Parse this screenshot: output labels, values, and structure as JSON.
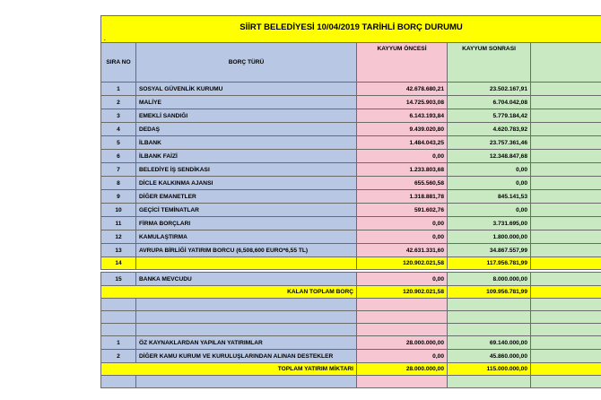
{
  "title": "SİİRT BELEDİYESİ 10/04/2019 TARİHLİ BORÇ DURUMU",
  "title_mark": ".",
  "headers": {
    "no": "SIRA NO",
    "type": "BORÇ TÜRÜ",
    "before": "KAYYUM ÖNCESİ",
    "after": "KAYYUM SONRASI"
  },
  "rows": [
    {
      "no": "1",
      "type": "SOSYAL GÜVENLİK KURUMU",
      "before": "42.678.680,21",
      "after": "23.502.167,91"
    },
    {
      "no": "2",
      "type": "MALİYE",
      "before": "14.725.903,08",
      "after": "6.704.042,08"
    },
    {
      "no": "3",
      "type": "EMEKLİ SANDIĞI",
      "before": "6.143.193,84",
      "after": "5.779.184,42"
    },
    {
      "no": "4",
      "type": "DEDAŞ",
      "before": "9.439.020,80",
      "after": "4.620.783,92"
    },
    {
      "no": "5",
      "type": "İLBANK",
      "before": "1.484.043,25",
      "after": "23.757.361,46"
    },
    {
      "no": "6",
      "type": "İLBANK FAİZİ",
      "before": "0,00",
      "after": "12.348.847,68"
    },
    {
      "no": "7",
      "type": "BELEDİYE İŞ SENDİKASI",
      "before": "1.233.803,68",
      "after": "0,00"
    },
    {
      "no": "8",
      "type": "DİCLE KALKINMA AJANSI",
      "before": "655.560,58",
      "after": "0,00"
    },
    {
      "no": "9",
      "type": "DİĞER EMANETLER",
      "before": "1.318.881,78",
      "after": "845.141,53"
    },
    {
      "no": "10",
      "type": "GEÇİCİ TEMİNATLAR",
      "before": "591.602,76",
      "after": "0,00"
    },
    {
      "no": "11",
      "type": "FİRMA BORÇLARI",
      "before": "0,00",
      "after": "3.731.695,00"
    },
    {
      "no": "12",
      "type": "KAMULAŞTIRMA",
      "before": "0,00",
      "after": "1.800.000,00"
    },
    {
      "no": "13",
      "type": "AVRUPA BİRLİĞİ YATIRIM BORCU (6,508,600 EURO*6,55 TL)",
      "before": "42.631.331,60",
      "after": "34.867.557,99"
    }
  ],
  "total_row": {
    "no": "14",
    "before": "120.902.021,58",
    "after": "117.956.781,99"
  },
  "bank_row": {
    "no": "15",
    "type": "BANKA MEVCUDU",
    "before": "0,00",
    "after": "8.000.000,00"
  },
  "remaining_row": {
    "label": "KALAN TOPLAM BORÇ",
    "before": "120.902.021,58",
    "after": "109.956.781,99"
  },
  "investments": [
    {
      "no": "1",
      "type": "ÖZ KAYNAKLARDAN YAPILAN YATIRIMLAR",
      "before": "28.000.000,00",
      "after": "69.140.000,00"
    },
    {
      "no": "2",
      "type": "DİĞER KAMU KURUM VE KURULUŞLARINDAN ALINAN DESTEKLER",
      "before": "0,00",
      "after": "45.860.000,00"
    }
  ],
  "investment_total": {
    "label": "TOPLAM YATIRIM MİKTARI",
    "before": "28.000.000,00",
    "after": "115.000.000,00"
  },
  "colors": {
    "yellow": "#ffff00",
    "blue": "#b8c7e4",
    "pink": "#f6c6d2",
    "green": "#c9e9c3"
  }
}
